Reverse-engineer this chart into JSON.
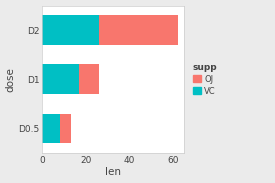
{
  "categories": [
    "D0.5",
    "D1",
    "D2"
  ],
  "vc_values": [
    7.98,
    16.77,
    26.14
  ],
  "oj_values": [
    5.25,
    9.47,
    36.17
  ],
  "vc_color": "#00BFC4",
  "oj_color": "#F8766D",
  "bg_color": "#EBEBEB",
  "panel_bg": "#FFFFFF",
  "grid_color": "#FFFFFF",
  "title": "",
  "xlabel": "len",
  "ylabel": "dose",
  "legend_title": "supp",
  "xlim": [
    0,
    65
  ],
  "xticks": [
    0,
    20,
    40,
    60
  ],
  "bar_height": 0.6,
  "figsize": [
    2.75,
    1.83
  ],
  "dpi": 100
}
